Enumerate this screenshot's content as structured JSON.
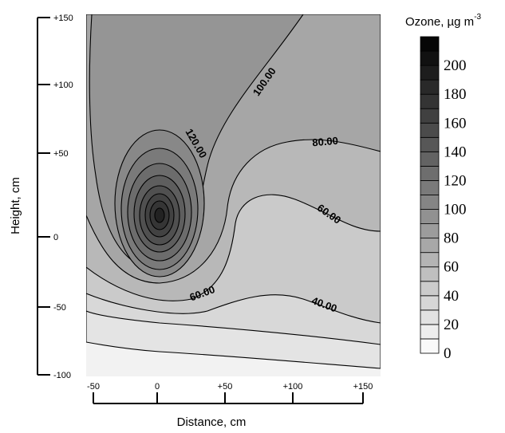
{
  "chart_data": {
    "type": "contour",
    "x_label": "Distance, cm",
    "y_label": "Height, cm",
    "xlim": [
      -50,
      150
    ],
    "xticks": [
      -50,
      0,
      {
        "value": 50,
        "label": "+50"
      },
      {
        "value": 100,
        "label": "+100"
      },
      {
        "value": 150,
        "label": "+150"
      }
    ],
    "ylim": [
      -100,
      150
    ],
    "yticks": [
      -100,
      -50,
      0,
      {
        "value": 50,
        "label": "+50"
      },
      {
        "value": 100,
        "label": "+100"
      },
      {
        "value": 150,
        "label": "+150"
      }
    ],
    "contour_labels": [
      "100.00",
      "120.00",
      "80.00",
      "60.00",
      "60.00",
      "40.00"
    ],
    "colorbar": {
      "title": "Ozone, µg m",
      "title_superscript": "-3",
      "levels": [
        0,
        10,
        20,
        30,
        40,
        50,
        60,
        70,
        80,
        90,
        100,
        110,
        120,
        130,
        140,
        150,
        160,
        170,
        180,
        190,
        200,
        210,
        220
      ],
      "ticks": [
        0,
        20,
        40,
        60,
        80,
        100,
        120,
        140,
        160,
        180,
        200
      ]
    }
  }
}
